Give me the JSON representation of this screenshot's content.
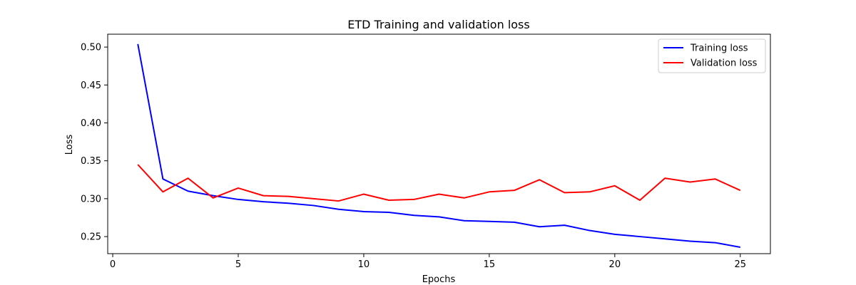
{
  "chart_data": {
    "type": "line",
    "title": "ETD Training and validation loss",
    "xlabel": "Epochs",
    "ylabel": "Loss",
    "xlim": [
      -0.2,
      26.2
    ],
    "ylim": [
      0.2275,
      0.517
    ],
    "xticks": [
      0,
      5,
      10,
      15,
      20,
      25
    ],
    "yticks": [
      0.25,
      0.3,
      0.35,
      0.4,
      0.45,
      0.5
    ],
    "ytick_labels": [
      "0.25",
      "0.30",
      "0.35",
      "0.40",
      "0.45",
      "0.50"
    ],
    "grid": false,
    "legend_position": "top-right",
    "x": [
      1,
      2,
      3,
      4,
      5,
      6,
      7,
      8,
      9,
      10,
      11,
      12,
      13,
      14,
      15,
      16,
      17,
      18,
      19,
      20,
      21,
      22,
      23,
      24,
      25
    ],
    "series": [
      {
        "name": "Training loss",
        "color": "#0000ff",
        "values": [
          0.504,
          0.326,
          0.31,
          0.304,
          0.299,
          0.296,
          0.294,
          0.291,
          0.286,
          0.283,
          0.282,
          0.278,
          0.276,
          0.271,
          0.27,
          0.269,
          0.263,
          0.265,
          0.258,
          0.253,
          0.25,
          0.247,
          0.244,
          0.242,
          0.236
        ]
      },
      {
        "name": "Validation loss",
        "color": "#ff0000",
        "values": [
          0.345,
          0.309,
          0.327,
          0.301,
          0.314,
          0.304,
          0.303,
          0.3,
          0.297,
          0.306,
          0.298,
          0.299,
          0.306,
          0.301,
          0.309,
          0.311,
          0.325,
          0.308,
          0.309,
          0.317,
          0.298,
          0.327,
          0.322,
          0.326,
          0.311
        ]
      }
    ]
  }
}
